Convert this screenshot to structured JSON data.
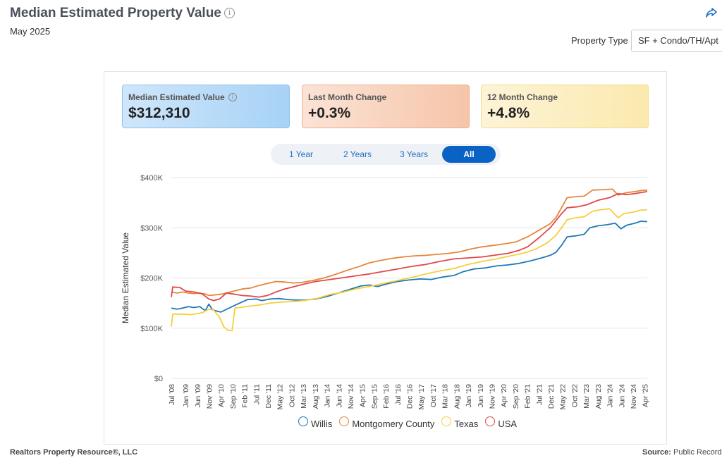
{
  "header": {
    "title": "Median Estimated Property Value",
    "info_glyph": "i",
    "subtitle": "May 2025",
    "share_icon": "share-icon"
  },
  "property_type": {
    "label": "Property Type",
    "selected": "SF + Condo/TH/Apt"
  },
  "kpis": [
    {
      "label": "Median Estimated Value",
      "value": "$312,310",
      "has_info": true
    },
    {
      "label": "Last Month Change",
      "value": "+0.3%",
      "has_info": false
    },
    {
      "label": "12 Month Change",
      "value": "+4.8%",
      "has_info": false
    }
  ],
  "ranges": [
    {
      "label": "1 Year",
      "active": false
    },
    {
      "label": "2 Years",
      "active": false
    },
    {
      "label": "3 Years",
      "active": false
    },
    {
      "label": "All",
      "active": true
    }
  ],
  "footer": {
    "left": "Realtors Property Resource®, LLC",
    "source_label": "Source:",
    "source_value": "Public Records a"
  },
  "colors": {
    "Willis": "#1f78b4",
    "Montgomery County": "#e6863a",
    "Texas": "#f6cf3c",
    "USA": "#e04848",
    "accent": "#0a62c5"
  },
  "chart_data": {
    "type": "line",
    "ylabel": "Median Estimated Value",
    "ylim": [
      0,
      400000
    ],
    "yticks": [
      0,
      100000,
      200000,
      300000,
      400000
    ],
    "ytick_labels": [
      "$0",
      "$100K",
      "$200K",
      "$300K",
      "$400K"
    ],
    "xlim": [
      2008.5,
      2025.333
    ],
    "xticks": [
      {
        "label": "Jul '08",
        "t": 2008.5
      },
      {
        "label": "Jan '09",
        "t": 2009.0
      },
      {
        "label": "Jun '09",
        "t": 2009.417
      },
      {
        "label": "Nov '09",
        "t": 2009.833
      },
      {
        "label": "Apr '10",
        "t": 2010.25
      },
      {
        "label": "Sep '10",
        "t": 2010.667
      },
      {
        "label": "Feb '11",
        "t": 2011.083
      },
      {
        "label": "Jul '11",
        "t": 2011.5
      },
      {
        "label": "Dec '11",
        "t": 2011.917
      },
      {
        "label": "May '12",
        "t": 2012.333
      },
      {
        "label": "Oct '12",
        "t": 2012.75
      },
      {
        "label": "Mar '13",
        "t": 2013.167
      },
      {
        "label": "Aug '13",
        "t": 2013.583
      },
      {
        "label": "Jan '14",
        "t": 2014.0
      },
      {
        "label": "Jun '14",
        "t": 2014.417
      },
      {
        "label": "Nov '14",
        "t": 2014.833
      },
      {
        "label": "Apr '15",
        "t": 2015.25
      },
      {
        "label": "Sep '15",
        "t": 2015.667
      },
      {
        "label": "Feb '16",
        "t": 2016.083
      },
      {
        "label": "Jul '16",
        "t": 2016.5
      },
      {
        "label": "Dec '16",
        "t": 2016.917
      },
      {
        "label": "May '17",
        "t": 2017.333
      },
      {
        "label": "Oct '17",
        "t": 2017.75
      },
      {
        "label": "Mar '18",
        "t": 2018.167
      },
      {
        "label": "Aug '18",
        "t": 2018.583
      },
      {
        "label": "Jan '19",
        "t": 2019.0
      },
      {
        "label": "Jun '19",
        "t": 2019.417
      },
      {
        "label": "Nov '19",
        "t": 2019.833
      },
      {
        "label": "Apr '20",
        "t": 2020.25
      },
      {
        "label": "Sep '20",
        "t": 2020.667
      },
      {
        "label": "Feb '21",
        "t": 2021.083
      },
      {
        "label": "Jul '21",
        "t": 2021.5
      },
      {
        "label": "Dec '21",
        "t": 2021.917
      },
      {
        "label": "May '22",
        "t": 2022.333
      },
      {
        "label": "Oct '22",
        "t": 2022.75
      },
      {
        "label": "Mar '23",
        "t": 2023.167
      },
      {
        "label": "Aug '23",
        "t": 2023.583
      },
      {
        "label": "Jan '24",
        "t": 2024.0
      },
      {
        "label": "Jun '24",
        "t": 2024.417
      },
      {
        "label": "Nov '24",
        "t": 2024.833
      },
      {
        "label": "Apr '25",
        "t": 2025.25
      }
    ],
    "grid": true,
    "legend_position": "bottom",
    "series": [
      {
        "name": "Willis",
        "points": [
          [
            2008.5,
            140000
          ],
          [
            2008.7,
            138000
          ],
          [
            2008.9,
            140000
          ],
          [
            2009.1,
            143000
          ],
          [
            2009.3,
            141000
          ],
          [
            2009.5,
            143000
          ],
          [
            2009.7,
            135000
          ],
          [
            2009.83,
            148000
          ],
          [
            2009.95,
            137000
          ],
          [
            2010.1,
            134000
          ],
          [
            2010.25,
            132000
          ],
          [
            2010.5,
            139000
          ],
          [
            2010.8,
            147000
          ],
          [
            2011.0,
            152000
          ],
          [
            2011.2,
            157000
          ],
          [
            2011.5,
            158000
          ],
          [
            2011.7,
            155000
          ],
          [
            2012.0,
            158000
          ],
          [
            2012.3,
            159000
          ],
          [
            2012.6,
            157000
          ],
          [
            2012.9,
            156000
          ],
          [
            2013.2,
            156000
          ],
          [
            2013.6,
            158000
          ],
          [
            2014.0,
            163000
          ],
          [
            2014.4,
            170000
          ],
          [
            2014.8,
            177000
          ],
          [
            2015.2,
            184000
          ],
          [
            2015.5,
            186000
          ],
          [
            2015.8,
            183000
          ],
          [
            2016.1,
            188000
          ],
          [
            2016.5,
            193000
          ],
          [
            2016.9,
            196000
          ],
          [
            2017.3,
            198000
          ],
          [
            2017.7,
            197000
          ],
          [
            2018.1,
            202000
          ],
          [
            2018.5,
            205000
          ],
          [
            2018.8,
            212000
          ],
          [
            2019.2,
            218000
          ],
          [
            2019.6,
            220000
          ],
          [
            2020.0,
            224000
          ],
          [
            2020.4,
            226000
          ],
          [
            2020.8,
            229000
          ],
          [
            2021.2,
            234000
          ],
          [
            2021.6,
            240000
          ],
          [
            2021.9,
            245000
          ],
          [
            2022.1,
            251000
          ],
          [
            2022.3,
            265000
          ],
          [
            2022.5,
            282000
          ],
          [
            2022.8,
            284000
          ],
          [
            2023.1,
            287000
          ],
          [
            2023.3,
            300000
          ],
          [
            2023.6,
            304000
          ],
          [
            2023.9,
            306000
          ],
          [
            2024.2,
            309000
          ],
          [
            2024.4,
            298000
          ],
          [
            2024.6,
            305000
          ],
          [
            2024.9,
            309000
          ],
          [
            2025.1,
            313000
          ],
          [
            2025.333,
            312310
          ]
        ]
      },
      {
        "name": "Montgomery County",
        "points": [
          [
            2008.5,
            172000
          ],
          [
            2008.7,
            170000
          ],
          [
            2008.9,
            172000
          ],
          [
            2009.1,
            170000
          ],
          [
            2009.3,
            169000
          ],
          [
            2009.5,
            170000
          ],
          [
            2009.7,
            168000
          ],
          [
            2009.83,
            165000
          ],
          [
            2010.0,
            166000
          ],
          [
            2010.3,
            168000
          ],
          [
            2010.5,
            171000
          ],
          [
            2010.8,
            175000
          ],
          [
            2011.0,
            178000
          ],
          [
            2011.3,
            180000
          ],
          [
            2011.6,
            185000
          ],
          [
            2011.9,
            189000
          ],
          [
            2012.2,
            193000
          ],
          [
            2012.5,
            192000
          ],
          [
            2012.8,
            190000
          ],
          [
            2013.1,
            191000
          ],
          [
            2013.5,
            195000
          ],
          [
            2013.9,
            200000
          ],
          [
            2014.3,
            207000
          ],
          [
            2014.7,
            215000
          ],
          [
            2015.1,
            222000
          ],
          [
            2015.5,
            230000
          ],
          [
            2015.9,
            235000
          ],
          [
            2016.3,
            239000
          ],
          [
            2016.7,
            242000
          ],
          [
            2017.1,
            244000
          ],
          [
            2017.5,
            245000
          ],
          [
            2017.9,
            247000
          ],
          [
            2018.3,
            249000
          ],
          [
            2018.7,
            252000
          ],
          [
            2019.1,
            258000
          ],
          [
            2019.5,
            262000
          ],
          [
            2019.9,
            265000
          ],
          [
            2020.3,
            268000
          ],
          [
            2020.7,
            272000
          ],
          [
            2021.1,
            282000
          ],
          [
            2021.5,
            295000
          ],
          [
            2021.9,
            308000
          ],
          [
            2022.1,
            320000
          ],
          [
            2022.3,
            340000
          ],
          [
            2022.5,
            360000
          ],
          [
            2022.8,
            362000
          ],
          [
            2023.1,
            363000
          ],
          [
            2023.4,
            375000
          ],
          [
            2023.8,
            376000
          ],
          [
            2024.1,
            377000
          ],
          [
            2024.3,
            365000
          ],
          [
            2024.6,
            370000
          ],
          [
            2024.9,
            372000
          ],
          [
            2025.1,
            374000
          ],
          [
            2025.333,
            375000
          ]
        ]
      },
      {
        "name": "Texas",
        "points": [
          [
            2008.5,
            103000
          ],
          [
            2008.55,
            128000
          ],
          [
            2008.8,
            128000
          ],
          [
            2009.2,
            127000
          ],
          [
            2009.6,
            131000
          ],
          [
            2009.83,
            138000
          ],
          [
            2010.0,
            136000
          ],
          [
            2010.2,
            122000
          ],
          [
            2010.35,
            103000
          ],
          [
            2010.5,
            96000
          ],
          [
            2010.65,
            95000
          ],
          [
            2010.75,
            140000
          ],
          [
            2011.0,
            142000
          ],
          [
            2011.3,
            144000
          ],
          [
            2011.7,
            147000
          ],
          [
            2012.0,
            150000
          ],
          [
            2012.4,
            152000
          ],
          [
            2012.8,
            153000
          ],
          [
            2013.2,
            155000
          ],
          [
            2013.7,
            160000
          ],
          [
            2014.1,
            167000
          ],
          [
            2014.6,
            172000
          ],
          [
            2015.0,
            178000
          ],
          [
            2015.5,
            183000
          ],
          [
            2016.0,
            189000
          ],
          [
            2016.5,
            195000
          ],
          [
            2017.0,
            201000
          ],
          [
            2017.5,
            208000
          ],
          [
            2018.0,
            214000
          ],
          [
            2018.5,
            219000
          ],
          [
            2019.0,
            227000
          ],
          [
            2019.5,
            233000
          ],
          [
            2020.0,
            238000
          ],
          [
            2020.5,
            244000
          ],
          [
            2021.0,
            250000
          ],
          [
            2021.4,
            258000
          ],
          [
            2021.8,
            270000
          ],
          [
            2022.1,
            285000
          ],
          [
            2022.3,
            300000
          ],
          [
            2022.5,
            316000
          ],
          [
            2022.8,
            320000
          ],
          [
            2023.1,
            322000
          ],
          [
            2023.4,
            333000
          ],
          [
            2023.7,
            336000
          ],
          [
            2024.0,
            338000
          ],
          [
            2024.3,
            320000
          ],
          [
            2024.5,
            328000
          ],
          [
            2024.9,
            332000
          ],
          [
            2025.1,
            335000
          ],
          [
            2025.333,
            336000
          ]
        ]
      },
      {
        "name": "USA",
        "points": [
          [
            2008.5,
            162000
          ],
          [
            2008.55,
            182000
          ],
          [
            2008.8,
            181000
          ],
          [
            2009.0,
            174000
          ],
          [
            2009.3,
            172000
          ],
          [
            2009.6,
            168000
          ],
          [
            2009.83,
            158000
          ],
          [
            2010.0,
            155000
          ],
          [
            2010.2,
            158000
          ],
          [
            2010.45,
            170000
          ],
          [
            2010.7,
            168000
          ],
          [
            2011.0,
            165000
          ],
          [
            2011.3,
            164000
          ],
          [
            2011.6,
            162000
          ],
          [
            2011.9,
            165000
          ],
          [
            2012.2,
            172000
          ],
          [
            2012.5,
            178000
          ],
          [
            2012.8,
            182000
          ],
          [
            2013.2,
            188000
          ],
          [
            2013.6,
            193000
          ],
          [
            2014.0,
            196000
          ],
          [
            2014.5,
            200000
          ],
          [
            2015.0,
            204000
          ],
          [
            2015.5,
            208000
          ],
          [
            2016.0,
            213000
          ],
          [
            2016.5,
            218000
          ],
          [
            2017.0,
            223000
          ],
          [
            2017.5,
            227000
          ],
          [
            2018.0,
            233000
          ],
          [
            2018.5,
            238000
          ],
          [
            2019.0,
            240000
          ],
          [
            2019.5,
            242000
          ],
          [
            2019.9,
            245000
          ],
          [
            2020.4,
            249000
          ],
          [
            2020.8,
            255000
          ],
          [
            2021.1,
            262000
          ],
          [
            2021.5,
            280000
          ],
          [
            2021.9,
            300000
          ],
          [
            2022.3,
            328000
          ],
          [
            2022.5,
            340000
          ],
          [
            2022.9,
            342000
          ],
          [
            2023.2,
            346000
          ],
          [
            2023.6,
            355000
          ],
          [
            2024.0,
            360000
          ],
          [
            2024.3,
            368000
          ],
          [
            2024.6,
            366000
          ],
          [
            2024.9,
            368000
          ],
          [
            2025.1,
            370000
          ],
          [
            2025.333,
            372000
          ]
        ]
      }
    ]
  }
}
